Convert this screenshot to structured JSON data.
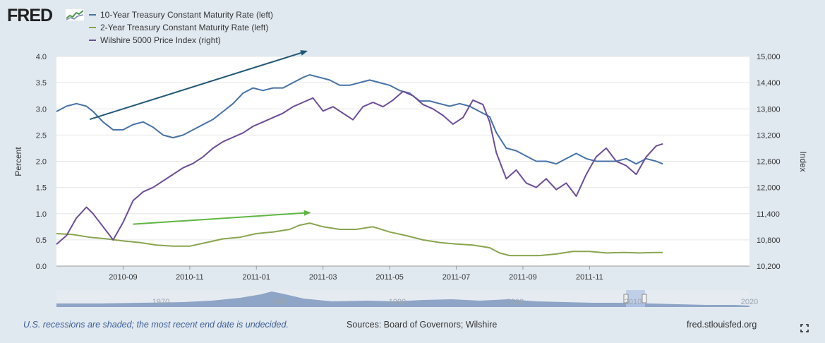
{
  "brand": {
    "name": "FRED",
    "icon": "fred-chart-logo-icon"
  },
  "footer": {
    "note": "U.S. recessions are shaded; the most recent end date is undecided.",
    "sources": "Sources: Board of Governors; Wilshire",
    "site": "fred.stlouisfed.org",
    "expand_icon": "fullscreen-icon"
  },
  "colors": {
    "background": "#e1e9f0",
    "plot": "#ffffff",
    "treasury10": "#4572a7",
    "treasury2": "#89a54e",
    "wilshire": "#6c4c96",
    "arrow_blue": "#1f5876",
    "arrow_green": "#5fb643",
    "navigator_fill": "#8ea5c7"
  },
  "chart_data": {
    "type": "line",
    "legend": [
      "10-Year Treasury Constant Maturity Rate (left)",
      "2-Year Treasury Constant Maturity Rate (left)",
      "Wilshire 5000 Price Index (right)"
    ],
    "ylabel_left": "Percent",
    "ylabel_right": "Index",
    "y_left_ticks": [
      "0.0",
      "0.5",
      "1.0",
      "1.5",
      "2.0",
      "2.5",
      "3.0",
      "3.5",
      "4.0"
    ],
    "y_right_ticks": [
      "10,200",
      "10,800",
      "11,400",
      "12,000",
      "12,600",
      "13,200",
      "13,800",
      "14,400",
      "15,000"
    ],
    "ylim_left": [
      0,
      4
    ],
    "ylim_right": [
      10200,
      15000
    ],
    "x_ticks": [
      "2010-09",
      "2010-11",
      "2011-01",
      "2011-03",
      "2011-05",
      "2011-07",
      "2011-09",
      "2011-11"
    ],
    "x_tick_months": [
      2,
      4,
      6,
      8,
      10,
      12,
      14,
      16
    ],
    "xlim_months": [
      0,
      20.8
    ],
    "grid": "horizontal",
    "series": [
      {
        "name": "10-Year Treasury Constant Maturity Rate (left)",
        "axis": "left",
        "points": [
          [
            0.0,
            2.95
          ],
          [
            0.3,
            3.05
          ],
          [
            0.6,
            3.1
          ],
          [
            0.9,
            3.05
          ],
          [
            1.1,
            2.95
          ],
          [
            1.4,
            2.75
          ],
          [
            1.7,
            2.6
          ],
          [
            2.0,
            2.6
          ],
          [
            2.3,
            2.7
          ],
          [
            2.6,
            2.75
          ],
          [
            2.9,
            2.65
          ],
          [
            3.2,
            2.5
          ],
          [
            3.5,
            2.45
          ],
          [
            3.8,
            2.5
          ],
          [
            4.1,
            2.6
          ],
          [
            4.4,
            2.7
          ],
          [
            4.7,
            2.8
          ],
          [
            5.0,
            2.95
          ],
          [
            5.3,
            3.1
          ],
          [
            5.6,
            3.3
          ],
          [
            5.9,
            3.4
          ],
          [
            6.2,
            3.35
          ],
          [
            6.5,
            3.4
          ],
          [
            6.8,
            3.4
          ],
          [
            7.1,
            3.5
          ],
          [
            7.4,
            3.6
          ],
          [
            7.6,
            3.65
          ],
          [
            7.9,
            3.6
          ],
          [
            8.2,
            3.55
          ],
          [
            8.5,
            3.45
          ],
          [
            8.8,
            3.45
          ],
          [
            9.1,
            3.5
          ],
          [
            9.4,
            3.55
          ],
          [
            9.7,
            3.5
          ],
          [
            10.0,
            3.45
          ],
          [
            10.3,
            3.35
          ],
          [
            10.6,
            3.3
          ],
          [
            10.9,
            3.15
          ],
          [
            11.2,
            3.15
          ],
          [
            11.5,
            3.1
          ],
          [
            11.8,
            3.05
          ],
          [
            12.1,
            3.1
          ],
          [
            12.4,
            3.05
          ],
          [
            12.7,
            2.95
          ],
          [
            13.0,
            2.85
          ],
          [
            13.2,
            2.55
          ],
          [
            13.5,
            2.25
          ],
          [
            13.8,
            2.2
          ],
          [
            14.1,
            2.1
          ],
          [
            14.4,
            2.0
          ],
          [
            14.7,
            2.0
          ],
          [
            15.0,
            1.95
          ],
          [
            15.3,
            2.05
          ],
          [
            15.6,
            2.15
          ],
          [
            15.9,
            2.05
          ],
          [
            16.2,
            2.0
          ],
          [
            16.5,
            2.0
          ],
          [
            16.8,
            2.0
          ],
          [
            17.1,
            2.05
          ],
          [
            17.4,
            1.95
          ],
          [
            17.7,
            2.05
          ],
          [
            18.0,
            2.0
          ],
          [
            18.2,
            1.95
          ]
        ]
      },
      {
        "name": "2-Year Treasury Constant Maturity Rate (left)",
        "axis": "left",
        "points": [
          [
            0.0,
            0.62
          ],
          [
            0.5,
            0.6
          ],
          [
            1.0,
            0.55
          ],
          [
            1.5,
            0.52
          ],
          [
            2.0,
            0.48
          ],
          [
            2.5,
            0.45
          ],
          [
            3.0,
            0.4
          ],
          [
            3.5,
            0.38
          ],
          [
            4.0,
            0.38
          ],
          [
            4.5,
            0.45
          ],
          [
            5.0,
            0.52
          ],
          [
            5.5,
            0.55
          ],
          [
            6.0,
            0.62
          ],
          [
            6.5,
            0.65
          ],
          [
            7.0,
            0.7
          ],
          [
            7.3,
            0.78
          ],
          [
            7.6,
            0.82
          ],
          [
            8.0,
            0.75
          ],
          [
            8.5,
            0.7
          ],
          [
            9.0,
            0.7
          ],
          [
            9.5,
            0.75
          ],
          [
            10.0,
            0.65
          ],
          [
            10.5,
            0.58
          ],
          [
            11.0,
            0.5
          ],
          [
            11.5,
            0.45
          ],
          [
            12.0,
            0.42
          ],
          [
            12.5,
            0.4
          ],
          [
            13.0,
            0.35
          ],
          [
            13.3,
            0.25
          ],
          [
            13.6,
            0.2
          ],
          [
            14.0,
            0.2
          ],
          [
            14.5,
            0.2
          ],
          [
            15.0,
            0.23
          ],
          [
            15.5,
            0.28
          ],
          [
            16.0,
            0.28
          ],
          [
            16.5,
            0.25
          ],
          [
            17.0,
            0.26
          ],
          [
            17.5,
            0.25
          ],
          [
            18.0,
            0.26
          ],
          [
            18.2,
            0.26
          ]
        ]
      },
      {
        "name": "Wilshire 5000 Price Index (right)",
        "axis": "right",
        "points": [
          [
            0.0,
            10700
          ],
          [
            0.3,
            10900
          ],
          [
            0.6,
            11300
          ],
          [
            0.9,
            11550
          ],
          [
            1.1,
            11400
          ],
          [
            1.4,
            11100
          ],
          [
            1.7,
            10800
          ],
          [
            2.0,
            11200
          ],
          [
            2.3,
            11700
          ],
          [
            2.6,
            11900
          ],
          [
            2.9,
            12000
          ],
          [
            3.2,
            12150
          ],
          [
            3.5,
            12300
          ],
          [
            3.8,
            12450
          ],
          [
            4.1,
            12550
          ],
          [
            4.4,
            12700
          ],
          [
            4.7,
            12900
          ],
          [
            5.0,
            13050
          ],
          [
            5.3,
            13150
          ],
          [
            5.6,
            13250
          ],
          [
            5.9,
            13400
          ],
          [
            6.2,
            13500
          ],
          [
            6.5,
            13600
          ],
          [
            6.8,
            13700
          ],
          [
            7.1,
            13850
          ],
          [
            7.4,
            13950
          ],
          [
            7.7,
            14050
          ],
          [
            8.0,
            13750
          ],
          [
            8.3,
            13850
          ],
          [
            8.6,
            13700
          ],
          [
            8.9,
            13550
          ],
          [
            9.2,
            13850
          ],
          [
            9.5,
            13950
          ],
          [
            9.8,
            13850
          ],
          [
            10.1,
            14000
          ],
          [
            10.4,
            14200
          ],
          [
            10.7,
            14100
          ],
          [
            11.0,
            13900
          ],
          [
            11.3,
            13800
          ],
          [
            11.6,
            13650
          ],
          [
            11.9,
            13450
          ],
          [
            12.2,
            13600
          ],
          [
            12.5,
            14000
          ],
          [
            12.8,
            13900
          ],
          [
            13.0,
            13500
          ],
          [
            13.2,
            12800
          ],
          [
            13.5,
            12200
          ],
          [
            13.8,
            12400
          ],
          [
            14.1,
            12100
          ],
          [
            14.4,
            12000
          ],
          [
            14.7,
            12200
          ],
          [
            15.0,
            11950
          ],
          [
            15.3,
            12100
          ],
          [
            15.6,
            11800
          ],
          [
            15.9,
            12300
          ],
          [
            16.2,
            12700
          ],
          [
            16.5,
            12900
          ],
          [
            16.8,
            12600
          ],
          [
            17.1,
            12500
          ],
          [
            17.4,
            12300
          ],
          [
            17.7,
            12700
          ],
          [
            18.0,
            12950
          ],
          [
            18.2,
            13000
          ]
        ]
      }
    ],
    "annotations": [
      {
        "type": "arrow",
        "axis": "left",
        "from": [
          1.0,
          2.8
        ],
        "to": [
          7.5,
          4.1
        ],
        "color": "arrow_blue"
      },
      {
        "type": "arrow",
        "axis": "left",
        "from": [
          2.3,
          0.8
        ],
        "to": [
          7.6,
          1.02
        ],
        "color": "arrow_green"
      }
    ],
    "navigator": {
      "labels": [
        "1970",
        "1980",
        "1990",
        "2000",
        "2010",
        "2020"
      ]
    }
  }
}
